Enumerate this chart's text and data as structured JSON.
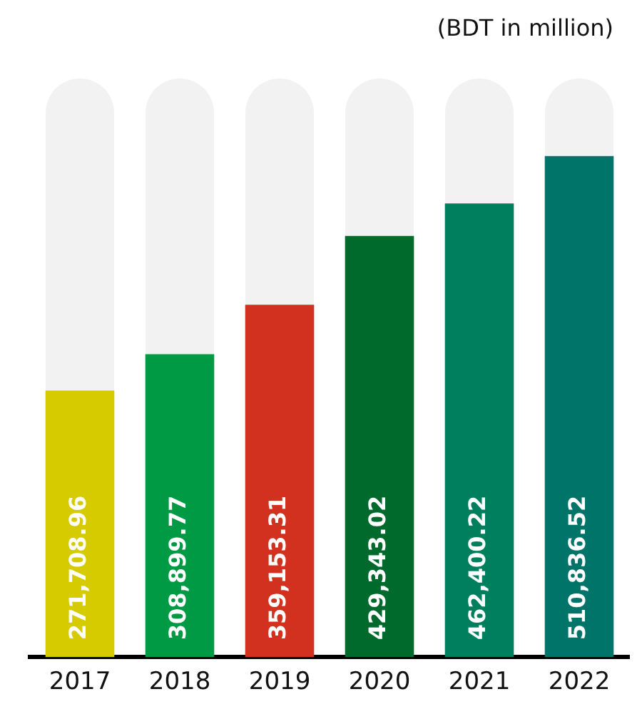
{
  "chart_data": {
    "type": "bar",
    "annotations": [
      "(BDT in million)"
    ],
    "categories": [
      "2017",
      "2018",
      "2019",
      "2020",
      "2021",
      "2022"
    ],
    "values": [
      271708.96,
      308899.77,
      359153.31,
      429343.02,
      462400.22,
      510836.52
    ],
    "value_labels": [
      "271,708.96",
      "308,899.77",
      "359,153.31",
      "429,343.02",
      "462,400.22",
      "510,836.52"
    ],
    "colors": [
      "#d6cb00",
      "#009a44",
      "#d3311f",
      "#006a2d",
      "#007f5f",
      "#007468"
    ],
    "grid": false,
    "legend": false
  }
}
